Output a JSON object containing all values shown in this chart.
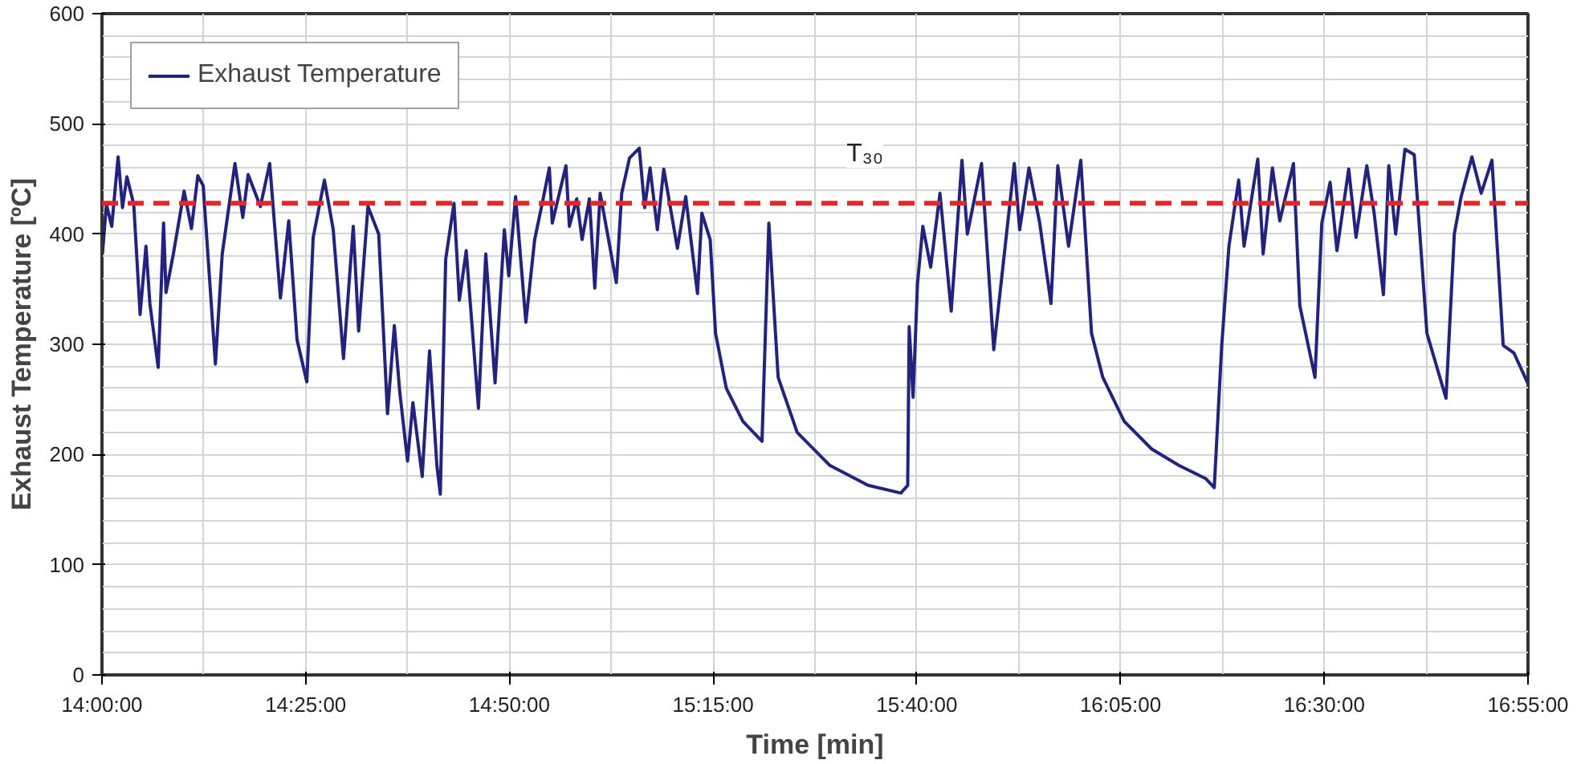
{
  "chart_data": {
    "type": "line",
    "xlabel": "Time [min]",
    "ylabel": "Exhaust Temperature [ºC]",
    "xlim": [
      14,
      16.9167
    ],
    "ylim": [
      0,
      600
    ],
    "xticks": [
      {
        "value": 14,
        "label": "14:00:00"
      },
      {
        "value": 14.4167,
        "label": "14:25:00"
      },
      {
        "value": 14.8333,
        "label": "14:50:00"
      },
      {
        "value": 15.25,
        "label": "15:15:00"
      },
      {
        "value": 15.6667,
        "label": "15:40:00"
      },
      {
        "value": 16.0833,
        "label": "16:05:00"
      },
      {
        "value": 16.5,
        "label": "16:30:00"
      },
      {
        "value": 16.9167,
        "label": "16:55:00"
      }
    ],
    "yticks": [
      0,
      100,
      200,
      300,
      400,
      500,
      600
    ],
    "grid": true,
    "legend": "top left",
    "marker": "none",
    "line_style": "solid",
    "ref_lines": [
      {
        "axis": "y",
        "value": 428,
        "label": "T₃₀",
        "color": "#e3262a",
        "line_style": "dashed"
      }
    ],
    "series": [
      {
        "name": "Exhaust Temperature",
        "color": "#23237e",
        "x": [
          14.001,
          14.009,
          14.02,
          14.033,
          14.042,
          14.051,
          14.065,
          14.078,
          14.09,
          14.098,
          14.115,
          14.126,
          14.131,
          14.146,
          14.168,
          14.183,
          14.196,
          14.207,
          14.232,
          14.246,
          14.272,
          14.288,
          14.299,
          14.324,
          14.343,
          14.365,
          14.382,
          14.399,
          14.419,
          14.432,
          14.455,
          14.473,
          14.494,
          14.514,
          14.525,
          14.544,
          14.566,
          14.584,
          14.598,
          14.609,
          14.625,
          14.636,
          14.655,
          14.67,
          14.685,
          14.692,
          14.703,
          14.72,
          14.731,
          14.745,
          14.77,
          14.785,
          14.804,
          14.823,
          14.832,
          14.846,
          14.867,
          14.885,
          14.901,
          14.915,
          14.921,
          14.949,
          14.956,
          14.971,
          14.982,
          14.997,
          15.008,
          15.019,
          15.052,
          15.063,
          15.079,
          15.099,
          15.11,
          15.121,
          15.136,
          15.149,
          15.177,
          15.194,
          15.218,
          15.227,
          15.244,
          15.255,
          15.277,
          15.311,
          15.35,
          15.364,
          15.383,
          15.422,
          15.489,
          15.567,
          15.634,
          15.648,
          15.651,
          15.659,
          15.668,
          15.679,
          15.695,
          15.714,
          15.737,
          15.759,
          15.77,
          15.799,
          15.824,
          15.866,
          15.877,
          15.896,
          15.918,
          15.941,
          15.955,
          15.977,
          16.002,
          16.024,
          16.047,
          16.091,
          16.147,
          16.203,
          16.258,
          16.275,
          16.29,
          16.305,
          16.325,
          16.336,
          16.364,
          16.375,
          16.394,
          16.409,
          16.437,
          16.45,
          16.481,
          16.495,
          16.512,
          16.526,
          16.55,
          16.565,
          16.587,
          16.602,
          16.621,
          16.632,
          16.646,
          16.665,
          16.684,
          16.71,
          16.749,
          16.766,
          16.78,
          16.802,
          16.821,
          16.843,
          16.866,
          16.888,
          16.916
        ],
        "values": [
          382,
          427,
          407,
          470,
          424,
          452,
          427,
          327,
          389,
          337,
          279,
          410,
          347,
          382,
          439,
          405,
          453,
          444,
          282,
          382,
          464,
          415,
          454,
          425,
          464,
          342,
          412,
          304,
          266,
          397,
          449,
          404,
          287,
          407,
          312,
          425,
          400,
          237,
          317,
          257,
          194,
          247,
          180,
          294,
          190,
          164,
          377,
          428,
          340,
          385,
          242,
          382,
          265,
          404,
          362,
          434,
          320,
          395,
          429,
          460,
          410,
          462,
          407,
          432,
          395,
          432,
          351,
          437,
          356,
          437,
          469,
          478,
          424,
          460,
          404,
          459,
          387,
          434,
          346,
          419,
          395,
          310,
          260,
          230,
          212,
          410,
          270,
          220,
          190,
          172,
          165,
          172,
          316,
          252,
          355,
          407,
          370,
          437,
          330,
          467,
          400,
          464,
          295,
          464,
          404,
          460,
          410,
          337,
          462,
          389,
          467,
          310,
          270,
          230,
          205,
          190,
          178,
          170,
          297,
          389,
          449,
          389,
          468,
          382,
          460,
          412,
          464,
          335,
          270,
          410,
          447,
          385,
          459,
          397,
          462,
          419,
          345,
          462,
          400,
          477,
          472,
          310,
          251,
          400,
          434,
          470,
          437,
          467,
          299,
          292,
          265
        ]
      }
    ]
  }
}
